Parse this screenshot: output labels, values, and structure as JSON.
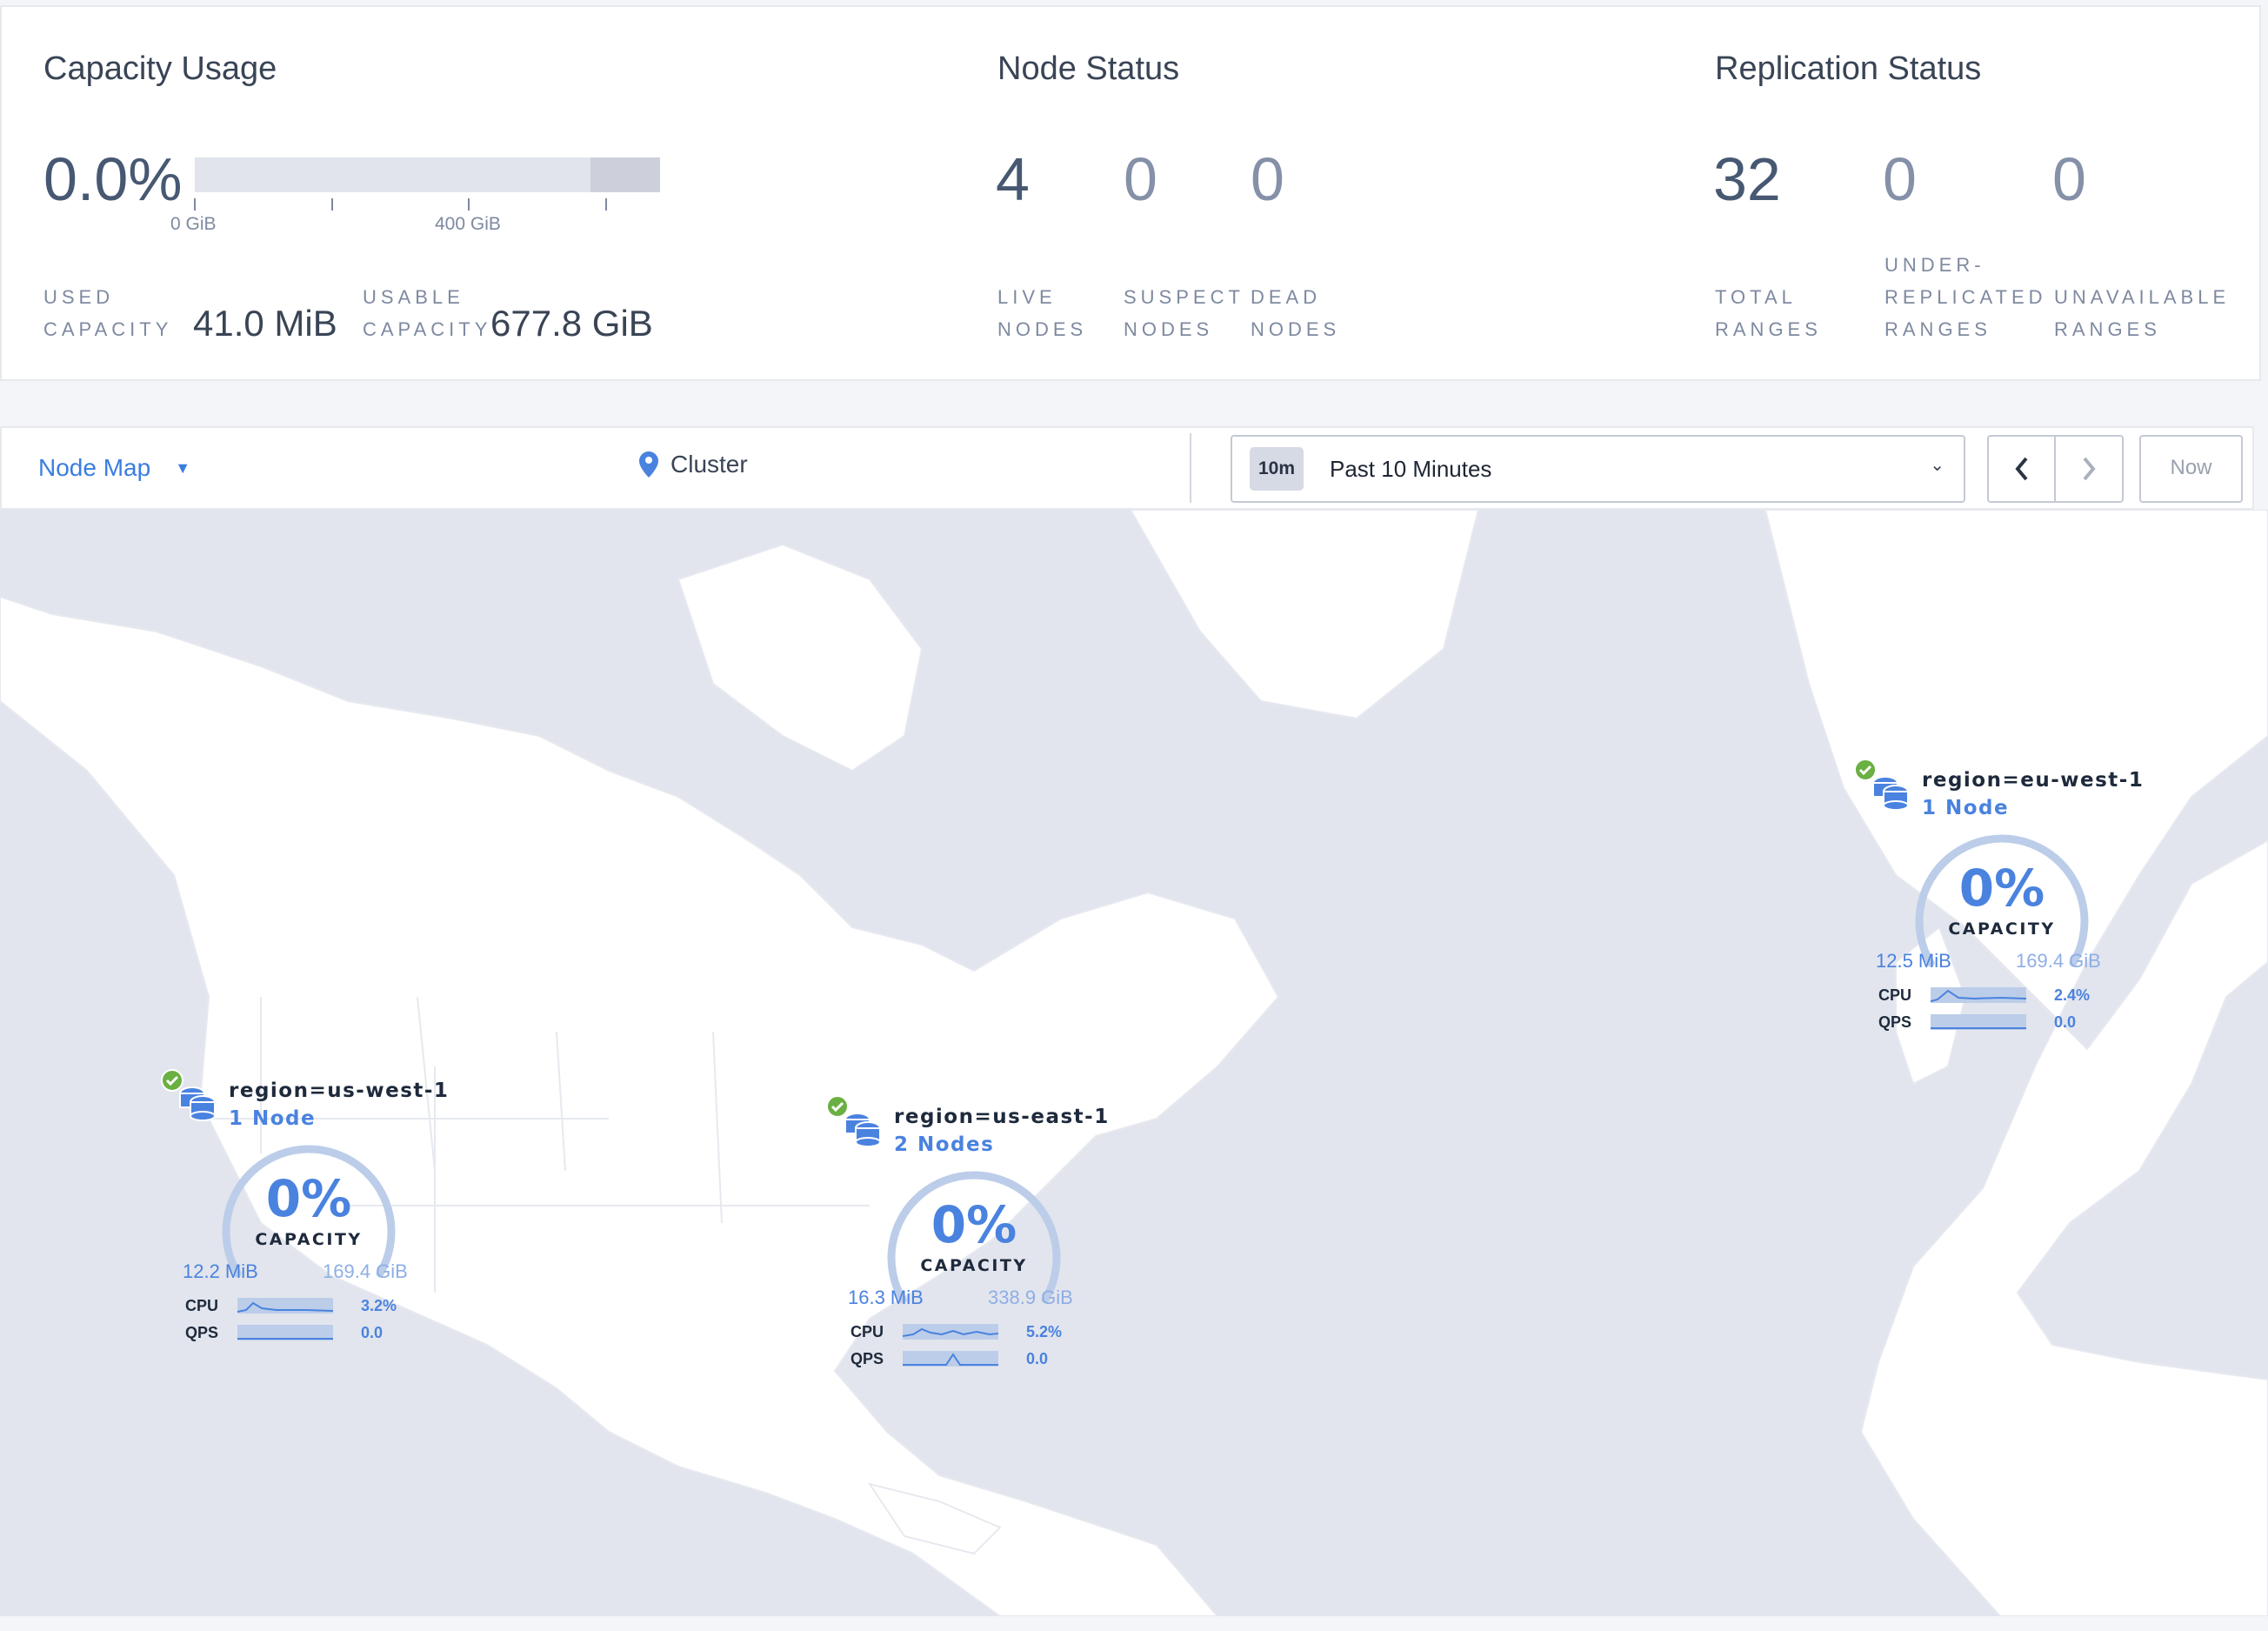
{
  "capacity": {
    "title": "Capacity Usage",
    "percent": "0.0%",
    "tick_0": "0 GiB",
    "tick_400": "400 GiB",
    "used_label_1": "USED",
    "used_label_2": "CAPACITY",
    "used_value": "41.0 MiB",
    "usable_label_1": "USABLE",
    "usable_label_2": "CAPACITY",
    "usable_value": "677.8 GiB",
    "usage_fraction": 0.0
  },
  "node_status": {
    "title": "Node Status",
    "live": "4",
    "live_l1": "LIVE",
    "live_l2": "NODES",
    "suspect": "0",
    "suspect_l1": "SUSPECT",
    "suspect_l2": "NODES",
    "dead": "0",
    "dead_l1": "DEAD",
    "dead_l2": "NODES"
  },
  "replication": {
    "title": "Replication Status",
    "total": "32",
    "total_l1": "TOTAL",
    "total_l2": "RANGES",
    "under": "0",
    "under_l1": "UNDER-",
    "under_l2": "REPLICATED",
    "under_l3": "RANGES",
    "unavail": "0",
    "unavail_l1": "UNAVAILABLE",
    "unavail_l2": "RANGES"
  },
  "toolbar": {
    "view": "Node Map",
    "location": "Cluster",
    "time_badge": "10m",
    "time_range": "Past 10 Minutes",
    "now": "Now"
  },
  "colors": {
    "accent": "#4a82df",
    "healthy": "#6ab042",
    "land": "#ffffff",
    "water": "#e2e5ed"
  },
  "regions": [
    {
      "name": "region=us-west-1",
      "nodes": "1 Node",
      "capacity_pct": "0%",
      "capacity_label": "CAPACITY",
      "used": "12.2 MiB",
      "total": "169.4 GiB",
      "cpu_label": "CPU",
      "cpu": "3.2%",
      "qps_label": "QPS",
      "qps": "0.0",
      "status": "healthy"
    },
    {
      "name": "region=us-east-1",
      "nodes": "2 Nodes",
      "capacity_pct": "0%",
      "capacity_label": "CAPACITY",
      "used": "16.3 MiB",
      "total": "338.9 GiB",
      "cpu_label": "CPU",
      "cpu": "5.2%",
      "qps_label": "QPS",
      "qps": "0.0",
      "status": "healthy"
    },
    {
      "name": "region=eu-west-1",
      "nodes": "1 Node",
      "capacity_pct": "0%",
      "capacity_label": "CAPACITY",
      "used": "12.5 MiB",
      "total": "169.4 GiB",
      "cpu_label": "CPU",
      "cpu": "2.4%",
      "qps_label": "QPS",
      "qps": "0.0",
      "status": "healthy"
    }
  ]
}
